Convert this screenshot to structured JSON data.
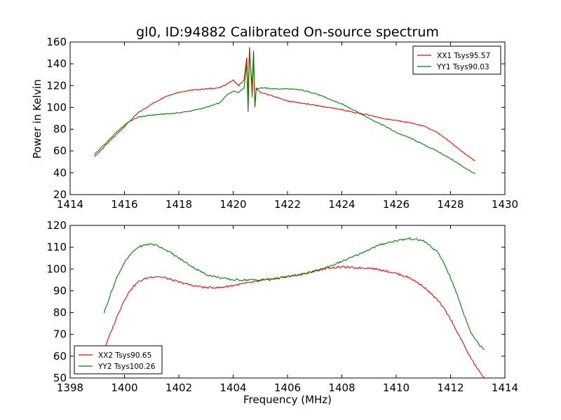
{
  "figure": {
    "title": "gl0, ID:94882 Calibrated On-source spectrum"
  },
  "chart_data": [
    {
      "type": "line",
      "title": "gl0, ID:94882 Calibrated On-source spectrum",
      "xlabel": "",
      "ylabel": "Power in Kelvin",
      "xlim": [
        1414,
        1430
      ],
      "ylim": [
        20,
        160
      ],
      "xticks": [
        "1414",
        "1416",
        "1418",
        "1420",
        "1422",
        "1424",
        "1426",
        "1428",
        "1430"
      ],
      "yticks": [
        "20",
        "40",
        "60",
        "80",
        "100",
        "120",
        "140",
        "160"
      ],
      "grid": false,
      "legend_position": "top-right",
      "series": [
        {
          "name": "XX1 Tsys95.57",
          "color": "#ff0000",
          "x": [
            1414.9,
            1415.3,
            1415.7,
            1416.1,
            1416.5,
            1417.0,
            1417.5,
            1418.0,
            1418.5,
            1419.0,
            1419.5,
            1419.8,
            1420.0,
            1420.2,
            1420.4,
            1420.5,
            1420.55,
            1420.6,
            1420.7,
            1420.75,
            1420.8,
            1420.85,
            1420.9,
            1421.0,
            1421.5,
            1422.0,
            1422.5,
            1423.0,
            1423.5,
            1424.0,
            1424.5,
            1425.0,
            1425.5,
            1426.0,
            1426.5,
            1427.0,
            1427.5,
            1428.0,
            1428.5,
            1428.9
          ],
          "y": [
            55,
            65,
            75,
            85,
            95,
            103,
            110,
            114,
            116,
            117,
            118,
            122,
            125,
            120,
            125,
            146,
            110,
            155,
            110,
            150,
            100,
            118,
            116,
            114,
            110,
            106,
            104,
            102,
            100,
            98,
            95,
            93,
            90,
            88,
            86,
            83,
            77,
            68,
            58,
            51
          ]
        },
        {
          "name": "YY1 Tsys90.03",
          "color": "#008000",
          "x": [
            1414.9,
            1415.3,
            1415.7,
            1416.1,
            1416.5,
            1417.0,
            1417.5,
            1418.0,
            1418.5,
            1419.0,
            1419.5,
            1419.8,
            1420.0,
            1420.2,
            1420.4,
            1420.5,
            1420.55,
            1420.6,
            1420.7,
            1420.75,
            1420.8,
            1420.85,
            1420.9,
            1421.0,
            1421.5,
            1422.0,
            1422.5,
            1423.0,
            1423.5,
            1424.0,
            1424.5,
            1425.0,
            1425.5,
            1426.0,
            1426.5,
            1427.0,
            1427.5,
            1428.0,
            1428.5,
            1428.9
          ],
          "y": [
            57,
            67,
            77,
            86,
            91,
            93,
            94,
            95,
            97,
            100,
            104,
            112,
            115,
            114,
            118,
            140,
            96,
            150,
            120,
            152,
            100,
            118,
            117,
            118,
            117,
            117,
            116,
            113,
            108,
            103,
            97,
            90,
            84,
            77,
            72,
            66,
            60,
            53,
            45,
            39
          ]
        }
      ]
    },
    {
      "type": "line",
      "title": "",
      "xlabel": "Frequency (MHz)",
      "ylabel": "",
      "xlim": [
        1398,
        1414
      ],
      "ylim": [
        50,
        120
      ],
      "xticks": [
        "1398",
        "1400",
        "1402",
        "1404",
        "1406",
        "1408",
        "1410",
        "1412",
        "1414"
      ],
      "yticks": [
        "50",
        "60",
        "70",
        "80",
        "90",
        "100",
        "110",
        "120"
      ],
      "grid": false,
      "legend_position": "bottom-left",
      "series": [
        {
          "name": "XX2 Tsys90.65",
          "color": "#ff0000",
          "x": [
            1399.25,
            1399.5,
            1399.75,
            1400.0,
            1400.25,
            1400.5,
            1400.75,
            1401.0,
            1401.25,
            1401.5,
            1401.75,
            1402.0,
            1402.5,
            1403.0,
            1403.5,
            1404.0,
            1404.5,
            1405.0,
            1405.5,
            1406.0,
            1406.5,
            1407.0,
            1407.5,
            1408.0,
            1408.5,
            1409.0,
            1409.5,
            1410.0,
            1410.5,
            1411.0,
            1411.5,
            1411.75,
            1412.0,
            1412.25,
            1412.5,
            1412.75,
            1413.0,
            1413.25
          ],
          "y": [
            63,
            71,
            79,
            86,
            91,
            94,
            95.5,
            96.5,
            96.5,
            96,
            95,
            94,
            92.5,
            91.5,
            91.5,
            92.5,
            93.5,
            94.5,
            95.5,
            96.5,
            97.5,
            99,
            100.5,
            101,
            100.5,
            100.5,
            99.5,
            98,
            96,
            92,
            86,
            82,
            77,
            71,
            65,
            59,
            54,
            50
          ]
        },
        {
          "name": "YY2 Tsys100.26",
          "color": "#008000",
          "x": [
            1399.25,
            1399.5,
            1399.75,
            1400.0,
            1400.25,
            1400.5,
            1400.75,
            1401.0,
            1401.25,
            1401.5,
            1401.75,
            1402.0,
            1402.5,
            1403.0,
            1403.5,
            1404.0,
            1404.5,
            1405.0,
            1405.5,
            1406.0,
            1406.5,
            1407.0,
            1407.5,
            1408.0,
            1408.5,
            1409.0,
            1409.5,
            1410.0,
            1410.5,
            1411.0,
            1411.5,
            1411.75,
            1412.0,
            1412.25,
            1412.5,
            1412.75,
            1413.0,
            1413.25
          ],
          "y": [
            80,
            89,
            97,
            103,
            107,
            110,
            111,
            111.5,
            110.5,
            109,
            107,
            105,
            101,
            97.5,
            96,
            95,
            95,
            95,
            95.5,
            96.5,
            97.5,
            99,
            101,
            103.5,
            106,
            109,
            111.5,
            113,
            114,
            113,
            108,
            103,
            96,
            88,
            79,
            71,
            66,
            63
          ]
        }
      ]
    }
  ]
}
